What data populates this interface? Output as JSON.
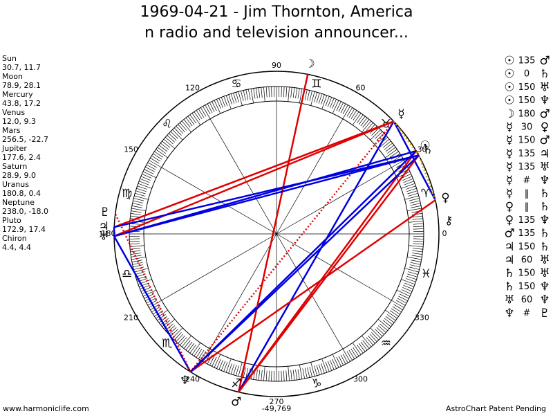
{
  "header": {
    "title": "1969-04-21 - Jim Thornton, America",
    "subtitle": "n radio and television announcer..."
  },
  "planets": [
    {
      "name": "Sun",
      "coords": "30.7, 11.7",
      "glyph": "☉"
    },
    {
      "name": "Moon",
      "coords": "78.9, 28.1",
      "glyph": "☽"
    },
    {
      "name": "Mercury",
      "coords": "43.8, 17.2",
      "glyph": "☿"
    },
    {
      "name": "Venus",
      "coords": "12.0, 9.3",
      "glyph": "♀"
    },
    {
      "name": "Mars",
      "coords": "256.5, -22.7",
      "glyph": "♂"
    },
    {
      "name": "Jupiter",
      "coords": "177.6, 2.4",
      "glyph": "♃"
    },
    {
      "name": "Saturn",
      "coords": "28.9, 9.0",
      "glyph": "♄"
    },
    {
      "name": "Uranus",
      "coords": "180.8, 0.4",
      "glyph": "♅"
    },
    {
      "name": "Neptune",
      "coords": "238.0, -18.0",
      "glyph": "♆"
    },
    {
      "name": "Pluto",
      "coords": "172.9, 17.4",
      "glyph": "♇"
    },
    {
      "name": "Chiron",
      "coords": "4.4, 4.4",
      "glyph": "⚷"
    }
  ],
  "aspects": [
    [
      "☉",
      "135",
      "♂"
    ],
    [
      "☉",
      "0",
      "♄"
    ],
    [
      "☉",
      "150",
      "♅"
    ],
    [
      "☉",
      "150",
      "♆"
    ],
    [
      "☽",
      "180",
      "♂"
    ],
    [
      "☿",
      "30",
      "♀"
    ],
    [
      "☿",
      "150",
      "♂"
    ],
    [
      "☿",
      "135",
      "♃"
    ],
    [
      "☿",
      "135",
      "♅"
    ],
    [
      "☿",
      "#",
      "♆"
    ],
    [
      "☿",
      "‖",
      "♄"
    ],
    [
      "♀",
      "‖",
      "♄"
    ],
    [
      "♀",
      "135",
      "♆"
    ],
    [
      "♂",
      "135",
      "♄"
    ],
    [
      "♃",
      "150",
      "♄"
    ],
    [
      "♃",
      "60",
      "♅"
    ],
    [
      "♄",
      "150",
      "♅"
    ],
    [
      "♄",
      "150",
      "♆"
    ],
    [
      "♅",
      "60",
      "♆"
    ],
    [
      "♆",
      "#",
      "♇"
    ]
  ],
  "degree_labels": [
    0,
    30,
    60,
    90,
    120,
    150,
    180,
    210,
    240,
    270,
    300,
    330
  ],
  "signs": [
    "♈",
    "♉",
    "♊",
    "♋",
    "♌",
    "♍",
    "♎",
    "♏",
    "♐",
    "♑",
    "♒",
    "♓"
  ],
  "footer": {
    "website": "www.harmoniclife.com",
    "score": "-49,769",
    "notice": "AstroChart Patent Pending"
  }
}
